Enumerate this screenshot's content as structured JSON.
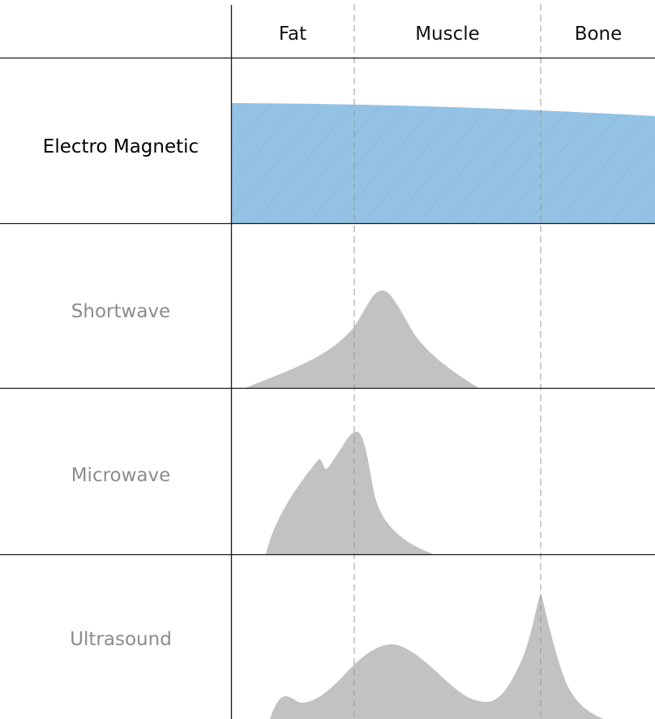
{
  "columns": [
    "Fat",
    "Muscle",
    "Bone"
  ],
  "rows": [
    {
      "label": "Electro Magnetic",
      "active": true
    },
    {
      "label": "Shortwave",
      "active": false
    },
    {
      "label": "Microwave",
      "active": false
    },
    {
      "label": "Ultrasound",
      "active": false
    }
  ],
  "colors": {
    "active_text": "#000000",
    "inactive_text": "#8c8c8c",
    "line": "#1a1a1a",
    "divider": "#999999",
    "electromagnetic_fill": "#94c2e4",
    "electromagnetic_hatch": "#6f9fc6",
    "profile_fill": "#c2c2c2"
  }
}
